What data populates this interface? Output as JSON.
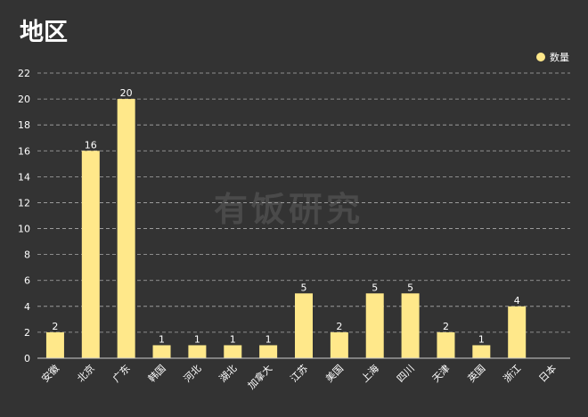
{
  "chart_data": {
    "type": "bar",
    "title": "地区",
    "categories": [
      "安徽",
      "北京",
      "广东",
      "韩国",
      "河北",
      "湖北",
      "加拿大",
      "江苏",
      "美国",
      "上海",
      "四川",
      "天津",
      "英国",
      "浙江",
      "日本"
    ],
    "series": [
      {
        "name": "数量",
        "values": [
          2,
          16,
          20,
          1,
          1,
          1,
          1,
          5,
          2,
          5,
          5,
          2,
          1,
          4,
          0
        ]
      }
    ],
    "data_labels": [
      "2",
      "16",
      "20",
      "1",
      "1",
      "1",
      "1",
      "5",
      "2",
      "5",
      "5",
      "2",
      "1",
      "4",
      ""
    ],
    "ylim": [
      0,
      22
    ],
    "yticks": [
      0,
      2,
      4,
      6,
      8,
      10,
      12,
      14,
      16,
      18,
      20,
      22
    ],
    "grid": true,
    "legend_position": "top-right",
    "colors": {
      "bar": "#FFE88A",
      "background": "#333333",
      "text": "#FFFFFF",
      "grid": "#AAAAAA"
    },
    "watermark": "有饭研究"
  }
}
